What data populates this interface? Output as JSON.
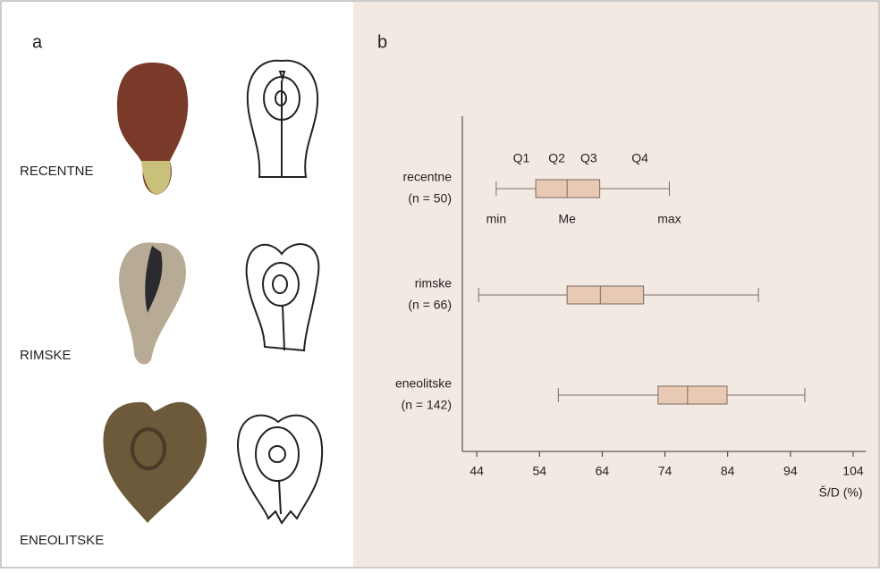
{
  "panel_a": {
    "label": "a",
    "rows": [
      "RECENTNE",
      "RIMSKE",
      "ENEOLITSKE"
    ]
  },
  "chart_data": {
    "type": "box",
    "panel_label": "b",
    "categories": [
      "recentne",
      "rimske",
      "eneolitske"
    ],
    "sample_labels": [
      "(n = 50)",
      "(n = 66)",
      "(n = 142)"
    ],
    "boxes": [
      {
        "min": 47.1,
        "q1": 53.4,
        "median": 58.4,
        "q3": 63.6,
        "max": 74.7
      },
      {
        "min": 44.3,
        "q1": 58.4,
        "median": 63.7,
        "q3": 70.6,
        "max": 88.9
      },
      {
        "min": 57,
        "q1": 72.9,
        "median": 77.6,
        "q3": 83.9,
        "max": 96.3
      }
    ],
    "quartile_labels": [
      "Q1",
      "Q2",
      "Q3",
      "Q4"
    ],
    "point_labels": [
      "min",
      "Me",
      "max"
    ],
    "x_label": "Š/D (%)",
    "xlim": [
      41.7,
      106
    ],
    "xticks": [
      44,
      54,
      64,
      74,
      84,
      94,
      104
    ],
    "color": "#e8c9b3",
    "stroke": "#7a6a60"
  }
}
